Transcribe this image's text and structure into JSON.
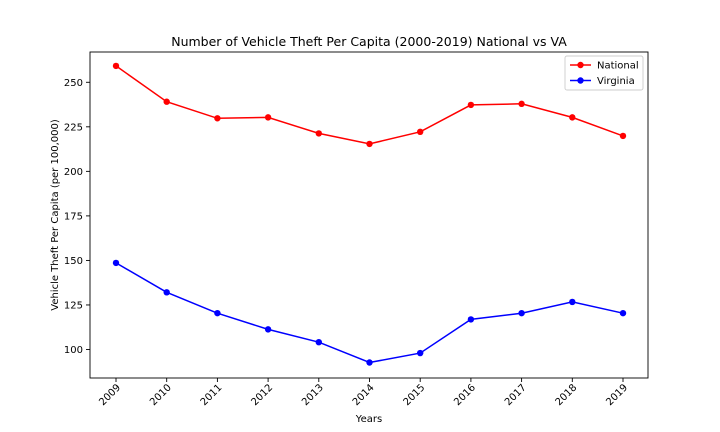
{
  "chart_data": {
    "type": "line",
    "title": "Number of Vehicle Theft Per Capita (2000-2019) National vs VA",
    "xlabel": "Years",
    "ylabel": "Vehicle Theft Per Capita (per 100,000)",
    "x": [
      "2009",
      "2010",
      "2011",
      "2012",
      "2013",
      "2014",
      "2015",
      "2016",
      "2017",
      "2018",
      "2019"
    ],
    "ylim": [
      84,
      267
    ],
    "yticks": [
      100,
      125,
      150,
      175,
      200,
      225,
      250
    ],
    "grid": false,
    "legend_position": "top-right",
    "series": [
      {
        "name": "National",
        "color": "#ff0000",
        "values": [
          259.2,
          239.1,
          229.8,
          230.3,
          221.3,
          215.4,
          222.2,
          237.3,
          237.9,
          230.3,
          219.9
        ]
      },
      {
        "name": "Virginia",
        "color": "#0000ff",
        "values": [
          148.6,
          132.1,
          120.4,
          111.3,
          104.1,
          92.7,
          98.0,
          116.9,
          120.4,
          126.7,
          120.4
        ]
      }
    ]
  }
}
